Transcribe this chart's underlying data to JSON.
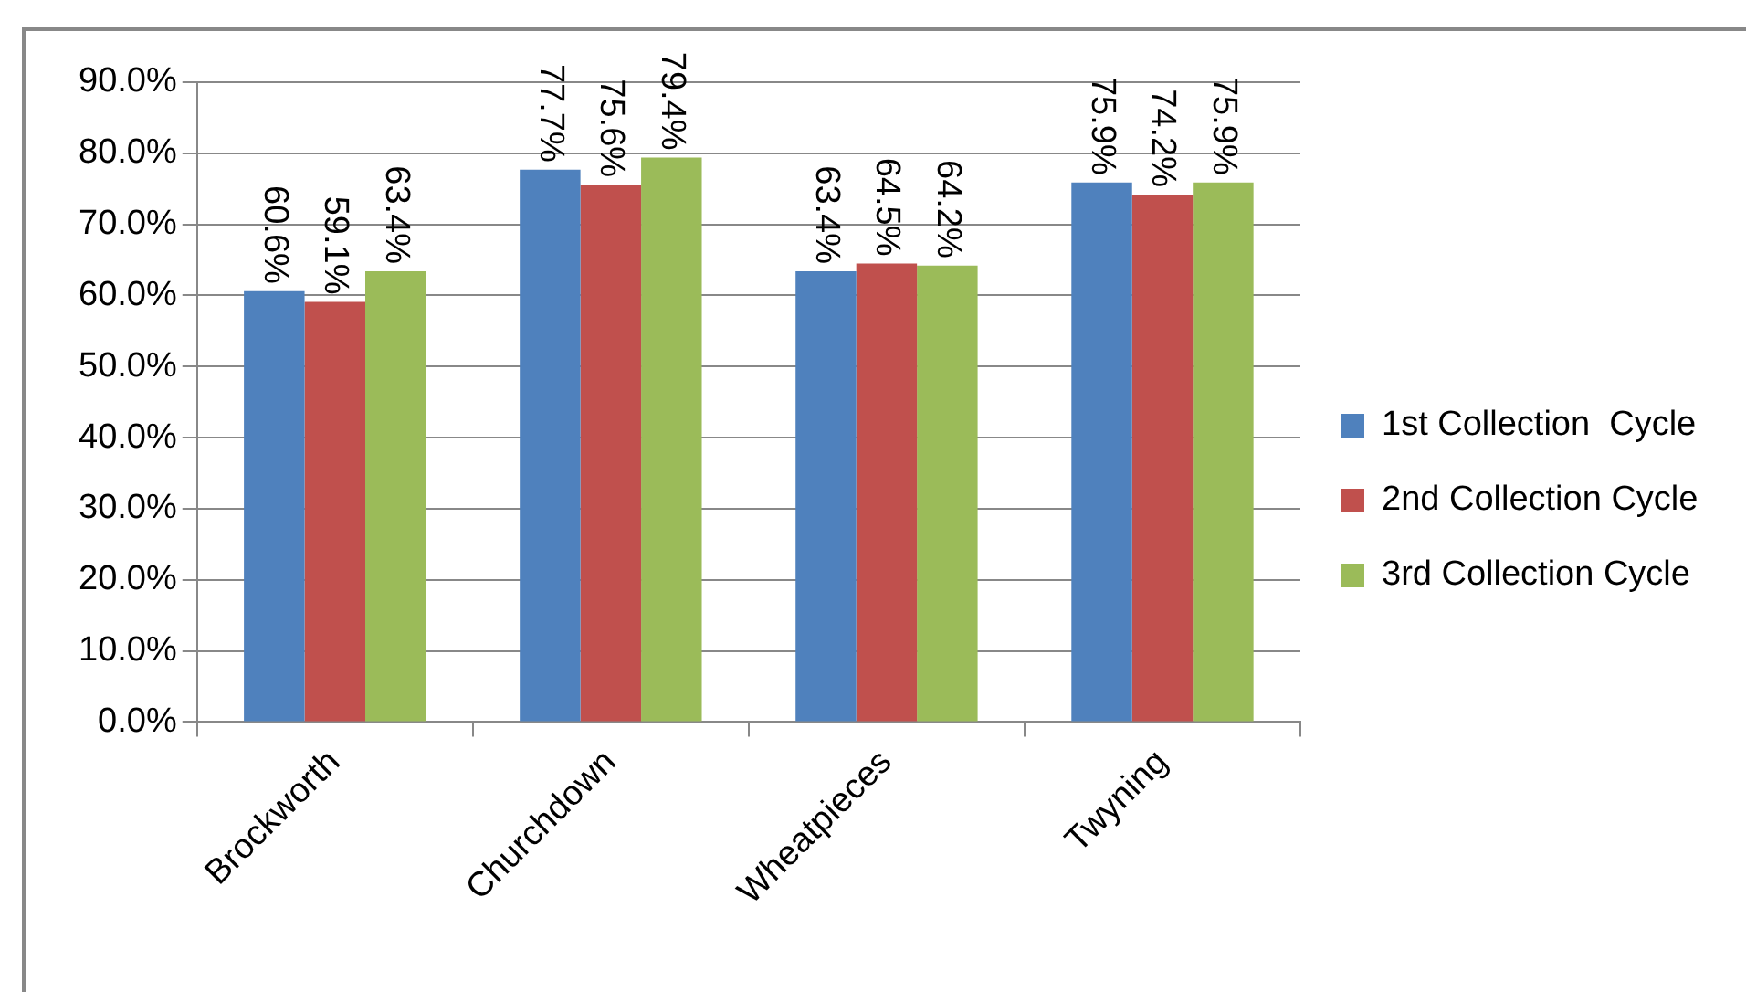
{
  "chart_data": {
    "type": "bar",
    "categories": [
      "Brockworth",
      "Churchdown",
      "Wheatpieces",
      "Twyning"
    ],
    "series": [
      {
        "name": "1st Collection  Cycle",
        "color": "#4f81bd",
        "values": [
          60.6,
          77.7,
          63.4,
          75.9
        ],
        "value_labels": [
          "60.6%",
          "77.7%",
          "63.4%",
          "75.9%"
        ]
      },
      {
        "name": "2nd Collection Cycle",
        "color": "#c0504d",
        "values": [
          59.1,
          75.6,
          64.5,
          74.2
        ],
        "value_labels": [
          "59.1%",
          "75.6%",
          "64.5%",
          "74.2%"
        ]
      },
      {
        "name": "3rd Collection Cycle",
        "color": "#9bbb59",
        "values": [
          63.4,
          79.4,
          64.2,
          75.9
        ],
        "value_labels": [
          "63.4%",
          "79.4%",
          "64.2%",
          "75.9%"
        ]
      }
    ],
    "ylim": [
      0,
      90
    ],
    "yticks": [
      {
        "value": 0,
        "label": "0.0%"
      },
      {
        "value": 10,
        "label": "10.0%"
      },
      {
        "value": 20,
        "label": "20.0%"
      },
      {
        "value": 30,
        "label": "30.0%"
      },
      {
        "value": 40,
        "label": "40.0%"
      },
      {
        "value": 50,
        "label": "50.0%"
      },
      {
        "value": 60,
        "label": "60.0%"
      },
      {
        "value": 70,
        "label": "70.0%"
      },
      {
        "value": 80,
        "label": "80.0%"
      },
      {
        "value": 90,
        "label": "90.0%"
      }
    ],
    "grid": "y",
    "legend": "right"
  }
}
